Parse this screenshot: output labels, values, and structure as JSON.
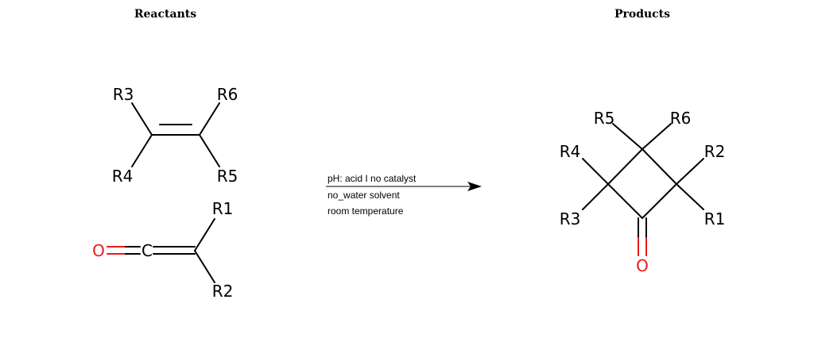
{
  "headings": {
    "reactants": "Reactants",
    "products": "Products"
  },
  "reactant_alkene": {
    "groups": [
      "R3",
      "R6",
      "R4",
      "R5"
    ]
  },
  "reactant_ketene": {
    "oxygen": "O",
    "carbon": "C",
    "groups": [
      "R1",
      "R2"
    ]
  },
  "conditions": {
    "ph": "pH: acid I no catalyst",
    "solvent": "no_water solvent",
    "temperature": "room temperature"
  },
  "product": {
    "groups": [
      "R5",
      "R6",
      "R4",
      "R2",
      "R3",
      "R1"
    ],
    "oxygen": "O"
  },
  "colors": {
    "bond": "#000000",
    "oxygen": "#e8191c"
  }
}
